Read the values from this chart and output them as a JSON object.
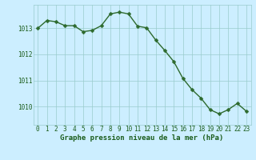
{
  "x_values": [
    0,
    1,
    2,
    3,
    4,
    5,
    6,
    7,
    8,
    9,
    10,
    11,
    12,
    13,
    14,
    15,
    16,
    17,
    18,
    19,
    20,
    21,
    22,
    23
  ],
  "y_values": [
    1013.0,
    1013.3,
    1013.25,
    1013.1,
    1013.1,
    1012.87,
    1012.92,
    1013.1,
    1013.55,
    1013.62,
    1013.55,
    1013.08,
    1013.02,
    1012.55,
    1012.15,
    1011.72,
    1011.08,
    1010.65,
    1010.32,
    1009.88,
    1009.72,
    1009.88,
    1010.12,
    1009.82
  ],
  "line_color": "#2d6a2d",
  "marker_color": "#2d6a2d",
  "bg_color": "#cceeff",
  "grid_color": "#99cccc",
  "text_color": "#1a5c1a",
  "ylim_min": 1009.3,
  "ylim_max": 1013.9,
  "yticks": [
    1010,
    1011,
    1012,
    1013
  ],
  "xlabel": "Graphe pression niveau de la mer (hPa)",
  "marker_size": 2.5,
  "line_width": 1.0,
  "tick_fontsize": 5.5,
  "xlabel_fontsize": 6.5
}
